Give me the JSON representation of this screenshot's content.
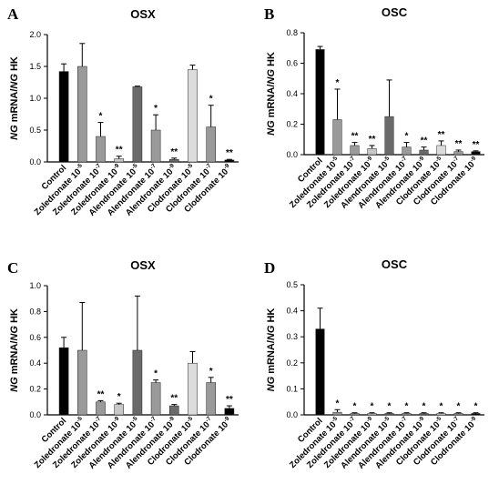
{
  "panels": [
    {
      "letter": "A",
      "title": "OSX",
      "ylabel_italic": "NG",
      "ylabel_mid": " mRNA/",
      "ylabel_italic2": "NG",
      "ylabel_end": " HK",
      "yticks": [
        "0.0",
        "0.5",
        "1.0",
        "1.5",
        "2.0"
      ],
      "categories": [
        {
          "base": "Control",
          "sup": ""
        },
        {
          "base": "Zoledronate 10",
          "sup": "-5"
        },
        {
          "base": "Zoledronate 10",
          "sup": "-7"
        },
        {
          "base": "Zoledronate 10",
          "sup": "-9"
        },
        {
          "base": "Alendronate 10",
          "sup": "-5"
        },
        {
          "base": "Alendronate 10",
          "sup": "-7"
        },
        {
          "base": "Alendronate 10",
          "sup": "-9"
        },
        {
          "base": "Clodronate 10",
          "sup": "-5"
        },
        {
          "base": "Clodronate 10",
          "sup": "-7"
        },
        {
          "base": "Clodronate 10",
          "sup": "-9"
        }
      ],
      "significance": [
        "",
        "",
        "*",
        "**",
        "",
        "*",
        "**",
        "",
        "*",
        "**"
      ]
    },
    {
      "letter": "B",
      "title": "OSC",
      "ylabel_italic": "NG",
      "ylabel_mid": " mRNA/",
      "ylabel_italic2": "NG",
      "ylabel_end": " HK",
      "yticks": [
        "0.0",
        "0.2",
        "0.4",
        "0.6",
        "0.8"
      ],
      "categories": [
        {
          "base": "Control",
          "sup": ""
        },
        {
          "base": "Zoledronate 10",
          "sup": "-5"
        },
        {
          "base": "Zoledronate 10",
          "sup": "-7"
        },
        {
          "base": "Zoledronate 10",
          "sup": "-9"
        },
        {
          "base": "Alendronate 10",
          "sup": "-5"
        },
        {
          "base": "Alendronate 10",
          "sup": "-7"
        },
        {
          "base": "Alendronate 10",
          "sup": "-9"
        },
        {
          "base": "Clodronate 10",
          "sup": "-5"
        },
        {
          "base": "Clodronate 10",
          "sup": "-7"
        },
        {
          "base": "Clodronate 10",
          "sup": "-9"
        }
      ],
      "significance": [
        "",
        "*",
        "**",
        "**",
        "",
        "*",
        "**",
        "**",
        "**",
        "**"
      ]
    },
    {
      "letter": "C",
      "title": "OSX",
      "ylabel_italic": "NG",
      "ylabel_mid": " mRNA/",
      "ylabel_italic2": "NG",
      "ylabel_end": " HK",
      "yticks": [
        "0.0",
        "0.2",
        "0.4",
        "0.6",
        "0.8",
        "1.0"
      ],
      "categories": [
        {
          "base": "Control",
          "sup": ""
        },
        {
          "base": "Zoledronate 10",
          "sup": "-5"
        },
        {
          "base": "Zoledronate 10",
          "sup": "-7"
        },
        {
          "base": "Zoledronate 10",
          "sup": "-9"
        },
        {
          "base": "Alendronate 10",
          "sup": "-5"
        },
        {
          "base": "Alendronate 10",
          "sup": "-7"
        },
        {
          "base": "Alendronate 10",
          "sup": "-9"
        },
        {
          "base": "Clodronate 10",
          "sup": "-5"
        },
        {
          "base": "Clodronate 10",
          "sup": "-7"
        },
        {
          "base": "Clodronate 10",
          "sup": "-9"
        }
      ],
      "significance": [
        "",
        "",
        "**",
        "*",
        "",
        "*",
        "**",
        "",
        "*",
        "**"
      ]
    },
    {
      "letter": "D",
      "title": "OSC",
      "ylabel_italic": "NG",
      "ylabel_mid": " mRNA/",
      "ylabel_italic2": "NG",
      "ylabel_end": " HK",
      "yticks": [
        "0.0",
        "0.1",
        "0.2",
        "0.3",
        "0.4",
        "0.5"
      ],
      "categories": [
        {
          "base": "Control",
          "sup": ""
        },
        {
          "base": "Zoledronate 10",
          "sup": "-5"
        },
        {
          "base": "Zoledronate 10",
          "sup": "-7"
        },
        {
          "base": "Zoledronate 10",
          "sup": "-9"
        },
        {
          "base": "Alendronate 10",
          "sup": "-5"
        },
        {
          "base": "Alendronate 10",
          "sup": "-7"
        },
        {
          "base": "Alendronate 10",
          "sup": "-9"
        },
        {
          "base": "Clodronate 10",
          "sup": "-5"
        },
        {
          "base": "Clodronate 10",
          "sup": "-7"
        },
        {
          "base": "Clodronate 10",
          "sup": "-9"
        }
      ],
      "significance": [
        "",
        "*",
        "*",
        "*",
        "*",
        "*",
        "*",
        "*",
        "*",
        "*"
      ]
    }
  ],
  "chart_data": [
    {
      "type": "bar",
      "title": "OSX",
      "ylabel": "NG mRNA/NG HK",
      "ylim": [
        0,
        2.0
      ],
      "categories": [
        "Control",
        "Zoledronate 10-5",
        "Zoledronate 10-7",
        "Zoledronate 10-9",
        "Alendronate 10-5",
        "Alendronate 10-7",
        "Alendronate 10-9",
        "Clodronate 10-5",
        "Clodronate 10-7",
        "Clodronate 10-9"
      ],
      "values": [
        1.42,
        1.5,
        0.4,
        0.05,
        1.18,
        0.5,
        0.04,
        1.45,
        0.55,
        0.03
      ],
      "errors": [
        0.12,
        0.36,
        0.22,
        0.04,
        0.01,
        0.24,
        0.02,
        0.07,
        0.34,
        0.01
      ],
      "bar_colors": [
        "#000000",
        "#9a9a9a",
        "#9a9a9a",
        "#c8c8c8",
        "#6a6a6a",
        "#9a9a9a",
        "#6a6a6a",
        "#dcdcdc",
        "#9a9a9a",
        "#000000"
      ],
      "grid": false
    },
    {
      "type": "bar",
      "title": "OSC",
      "ylabel": "NG mRNA/NG HK",
      "ylim": [
        0,
        0.8
      ],
      "categories": [
        "Control",
        "Zoledronate 10-5",
        "Zoledronate 10-7",
        "Zoledronate 10-9",
        "Alendronate 10-5",
        "Alendronate 10-7",
        "Alendronate 10-9",
        "Clodronate 10-5",
        "Clodronate 10-7",
        "Clodronate 10-9"
      ],
      "values": [
        0.69,
        0.23,
        0.06,
        0.04,
        0.25,
        0.05,
        0.03,
        0.06,
        0.02,
        0.02
      ],
      "errors": [
        0.02,
        0.2,
        0.02,
        0.02,
        0.24,
        0.03,
        0.02,
        0.03,
        0.01,
        0.005
      ],
      "bar_colors": [
        "#000000",
        "#9a9a9a",
        "#9a9a9a",
        "#c8c8c8",
        "#6a6a6a",
        "#9a9a9a",
        "#6a6a6a",
        "#dcdcdc",
        "#9a9a9a",
        "#000000"
      ],
      "grid": false
    },
    {
      "type": "bar",
      "title": "OSX",
      "ylabel": "NG mRNA/NG HK",
      "ylim": [
        0,
        1.0
      ],
      "categories": [
        "Control",
        "Zoledronate 10-5",
        "Zoledronate 10-7",
        "Zoledronate 10-9",
        "Alendronate 10-5",
        "Alendronate 10-7",
        "Alendronate 10-9",
        "Clodronate 10-5",
        "Clodronate 10-7",
        "Clodronate 10-9"
      ],
      "values": [
        0.52,
        0.5,
        0.1,
        0.08,
        0.5,
        0.25,
        0.07,
        0.4,
        0.25,
        0.05
      ],
      "errors": [
        0.08,
        0.37,
        0.01,
        0.01,
        0.42,
        0.02,
        0.01,
        0.09,
        0.04,
        0.02
      ],
      "bar_colors": [
        "#000000",
        "#9a9a9a",
        "#9a9a9a",
        "#c8c8c8",
        "#6a6a6a",
        "#9a9a9a",
        "#6a6a6a",
        "#dcdcdc",
        "#9a9a9a",
        "#000000"
      ],
      "grid": false
    },
    {
      "type": "bar",
      "title": "OSC",
      "ylabel": "NG mRNA/NG HK",
      "ylim": [
        0,
        0.5
      ],
      "categories": [
        "Control",
        "Zoledronate 10-5",
        "Zoledronate 10-7",
        "Zoledronate 10-9",
        "Alendronate 10-5",
        "Alendronate 10-7",
        "Alendronate 10-9",
        "Clodronate 10-5",
        "Clodronate 10-7",
        "Clodronate 10-9"
      ],
      "values": [
        0.33,
        0.01,
        0.005,
        0.005,
        0.005,
        0.005,
        0.005,
        0.005,
        0.005,
        0.005
      ],
      "errors": [
        0.08,
        0.01,
        0.003,
        0.003,
        0.003,
        0.003,
        0.003,
        0.003,
        0.003,
        0.003
      ],
      "bar_colors": [
        "#000000",
        "#9a9a9a",
        "#9a9a9a",
        "#c8c8c8",
        "#6a6a6a",
        "#9a9a9a",
        "#6a6a6a",
        "#dcdcdc",
        "#9a9a9a",
        "#000000"
      ],
      "grid": false
    }
  ]
}
